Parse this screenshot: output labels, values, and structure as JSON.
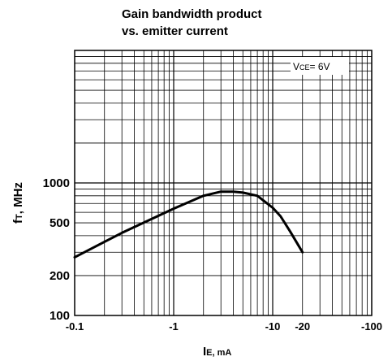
{
  "chart_data": {
    "type": "line",
    "title_line1": "Gain bandwidth product",
    "title_line2": "vs. emitter current",
    "xlabel_main": "I",
    "xlabel_sub": "E, mA",
    "ylabel_main": "f",
    "ylabel_sub": "T",
    "ylabel_unit": ", MHz",
    "annotation_prefix": "V",
    "annotation_sub": "CE",
    "annotation_value": "= 6V",
    "x_scale": "log",
    "y_scale": "log",
    "xlim": [
      -0.1,
      -100
    ],
    "ylim": [
      100,
      10000
    ],
    "grid": true,
    "x_ticks": [
      {
        "value": -0.1,
        "label": "-0.1"
      },
      {
        "value": -1,
        "label": "-1"
      },
      {
        "value": -10,
        "label": "-10"
      },
      {
        "value": -20,
        "label": "-20"
      },
      {
        "value": -100,
        "label": "-100"
      }
    ],
    "y_ticks": [
      {
        "value": 100,
        "label": "100"
      },
      {
        "value": 200,
        "label": "200"
      },
      {
        "value": 500,
        "label": "500"
      },
      {
        "value": 1000,
        "label": "1000"
      }
    ],
    "series": [
      {
        "x": [
          -0.1,
          -0.3,
          -1,
          -2,
          -3,
          -4,
          -5,
          -7,
          -10,
          -12,
          -15,
          -20
        ],
        "y": [
          275,
          420,
          640,
          800,
          860,
          860,
          845,
          800,
          650,
          560,
          430,
          300
        ]
      }
    ]
  }
}
